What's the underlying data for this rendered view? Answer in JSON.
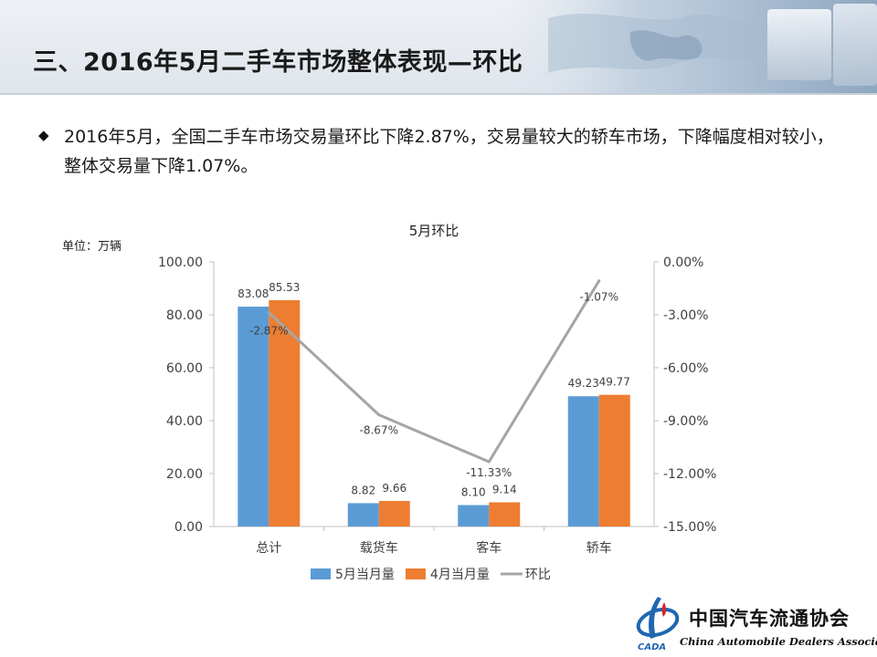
{
  "header": {
    "title": "三、2016年5月二手车市场整体表现—环比"
  },
  "summary": {
    "bullet_icon": "diamond-bullet-icon",
    "text": "2016年5月，全国二手车市场交易量环比下降2.87%，交易量较大的轿车市场，下降幅度相对较小，整体交易量下降1.07%。"
  },
  "chart_data": {
    "type": "bar",
    "title": "5月环比",
    "unit_label": "单位：万辆",
    "categories": [
      "总计",
      "载货车",
      "客车",
      "轿车"
    ],
    "series": [
      {
        "name": "5月当月量",
        "kind": "bar",
        "axis": "left",
        "color": "#5b9bd5",
        "values": [
          83.08,
          8.82,
          8.1,
          49.23
        ],
        "labels": [
          "83.08",
          "8.82",
          "8.10",
          "49.23"
        ]
      },
      {
        "name": "4月当月量",
        "kind": "bar",
        "axis": "left",
        "color": "#ed7d31",
        "values": [
          85.53,
          9.66,
          9.14,
          49.77
        ],
        "labels": [
          "85.53",
          "9.66",
          "9.14",
          "49.77"
        ]
      },
      {
        "name": "环比",
        "kind": "line",
        "axis": "right",
        "color": "#a5a5a5",
        "values": [
          -2.87,
          -8.67,
          -11.33,
          -1.07
        ],
        "labels": [
          "-2.87%",
          "-8.67%",
          "-11.33%",
          "-1.07%"
        ]
      }
    ],
    "y_left": {
      "min": 0,
      "max": 100,
      "ticks": [
        "100.00",
        "80.00",
        "60.00",
        "40.00",
        "20.00",
        "0.00"
      ]
    },
    "y_right": {
      "min": -15,
      "max": 0,
      "ticks": [
        "0.00%",
        "-3.00%",
        "-6.00%",
        "-9.00%",
        "-12.00%",
        "-15.00%"
      ]
    },
    "grid": false,
    "legend_position": "bottom"
  },
  "logo": {
    "name_cn": "中国汽车流通协会",
    "name_en": "China Automobile Dealers Association",
    "icon": "cada-logo-icon",
    "colors": {
      "blue": "#1f67b1",
      "red": "#d4262c"
    }
  }
}
